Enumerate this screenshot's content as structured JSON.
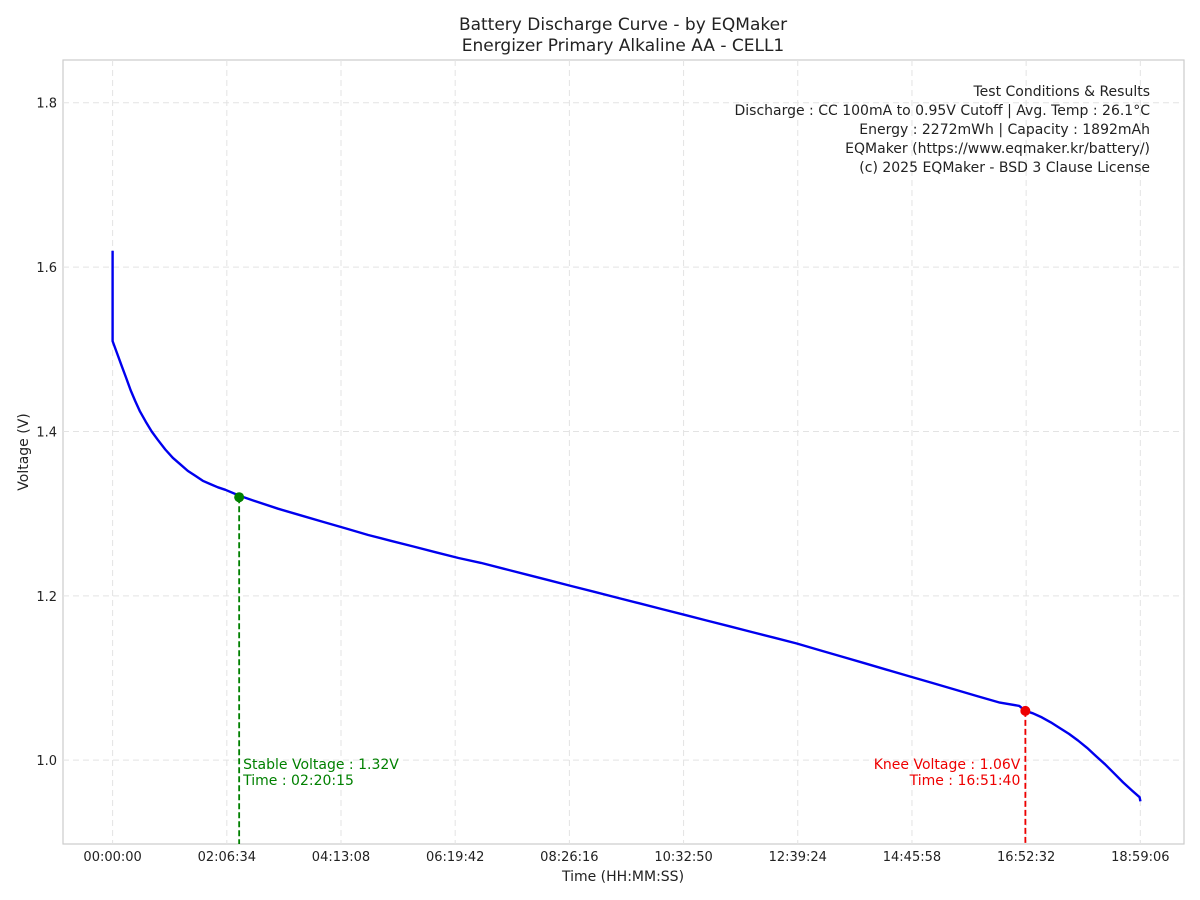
{
  "chart_data": {
    "type": "line",
    "title": "Battery Discharge Curve - by EQMaker",
    "subtitle": "Energizer Primary Alkaline AA - CELL1",
    "xlabel": "Time (HH:MM:SS)",
    "ylabel": "Voltage (V)",
    "x_unit": "seconds",
    "xlim": [
      -3300,
      71250
    ],
    "ylim": [
      0.898,
      1.852
    ],
    "grid": true,
    "x_ticks": [
      {
        "value": 0,
        "label": "00:00:00"
      },
      {
        "value": 7594,
        "label": "02:06:34"
      },
      {
        "value": 15188,
        "label": "04:13:08"
      },
      {
        "value": 22782,
        "label": "06:19:42"
      },
      {
        "value": 30376,
        "label": "08:26:16"
      },
      {
        "value": 37970,
        "label": "10:32:50"
      },
      {
        "value": 45564,
        "label": "12:39:24"
      },
      {
        "value": 53158,
        "label": "14:45:58"
      },
      {
        "value": 60752,
        "label": "16:52:32"
      },
      {
        "value": 68346,
        "label": "18:59:06"
      }
    ],
    "y_ticks": [
      {
        "value": 1.0,
        "label": "1.0"
      },
      {
        "value": 1.2,
        "label": "1.2"
      },
      {
        "value": 1.4,
        "label": "1.4"
      },
      {
        "value": 1.6,
        "label": "1.6"
      },
      {
        "value": 1.8,
        "label": "1.8"
      }
    ],
    "series": [
      {
        "color": "#0000ee",
        "x": [
          0,
          0,
          0,
          300,
          600,
          900,
          1200,
          1500,
          1800,
          2200,
          2600,
          3000,
          3500,
          4000,
          4500,
          5000,
          5500,
          6000,
          6500,
          7000,
          7500,
          8415,
          9500,
          11000,
          12500,
          14000,
          15500,
          17000,
          18500,
          20000,
          21500,
          23000,
          24500,
          26000,
          27500,
          29000,
          30500,
          32000,
          33500,
          35000,
          36500,
          38000,
          39500,
          41000,
          42500,
          44000,
          45500,
          47000,
          48500,
          50000,
          51500,
          53000,
          54500,
          56000,
          57500,
          59000,
          60300,
          60700,
          61200,
          61800,
          62400,
          63000,
          63600,
          64200,
          64800,
          65400,
          66000,
          66600,
          67200,
          67800,
          68300,
          68350
        ],
        "y": [
          1.62,
          1.55,
          1.51,
          1.495,
          1.48,
          1.465,
          1.45,
          1.437,
          1.425,
          1.412,
          1.4,
          1.39,
          1.378,
          1.368,
          1.36,
          1.352,
          1.346,
          1.34,
          1.336,
          1.332,
          1.329,
          1.322,
          1.315,
          1.306,
          1.298,
          1.29,
          1.282,
          1.274,
          1.267,
          1.26,
          1.253,
          1.246,
          1.24,
          1.233,
          1.226,
          1.219,
          1.212,
          1.205,
          1.198,
          1.191,
          1.184,
          1.177,
          1.17,
          1.163,
          1.156,
          1.149,
          1.142,
          1.134,
          1.126,
          1.118,
          1.11,
          1.102,
          1.094,
          1.086,
          1.078,
          1.07,
          1.066,
          1.06,
          1.057,
          1.052,
          1.046,
          1.039,
          1.032,
          1.024,
          1.015,
          1.005,
          0.995,
          0.984,
          0.973,
          0.963,
          0.955,
          0.95
        ]
      }
    ],
    "markers": [
      {
        "x": 8415,
        "y": 1.32,
        "color": "#008000",
        "line1": "Stable Voltage : 1.32V",
        "line2": "Time : 02:20:15"
      },
      {
        "x": 60700,
        "y": 1.06,
        "color": "#ee0000",
        "line1": "Knee Voltage : 1.06V",
        "line2": "Time : 16:51:40"
      }
    ],
    "info_box": {
      "lines": [
        "Test Conditions & Results",
        "Discharge : CC 100mA to 0.95V Cutoff | Avg. Temp : 26.1°C",
        "Energy : 2272mWh | Capacity : 1892mAh",
        "EQMaker (https://www.eqmaker.kr/battery/)",
        "(c) 2025 EQMaker - BSD 3 Clause License"
      ]
    }
  }
}
